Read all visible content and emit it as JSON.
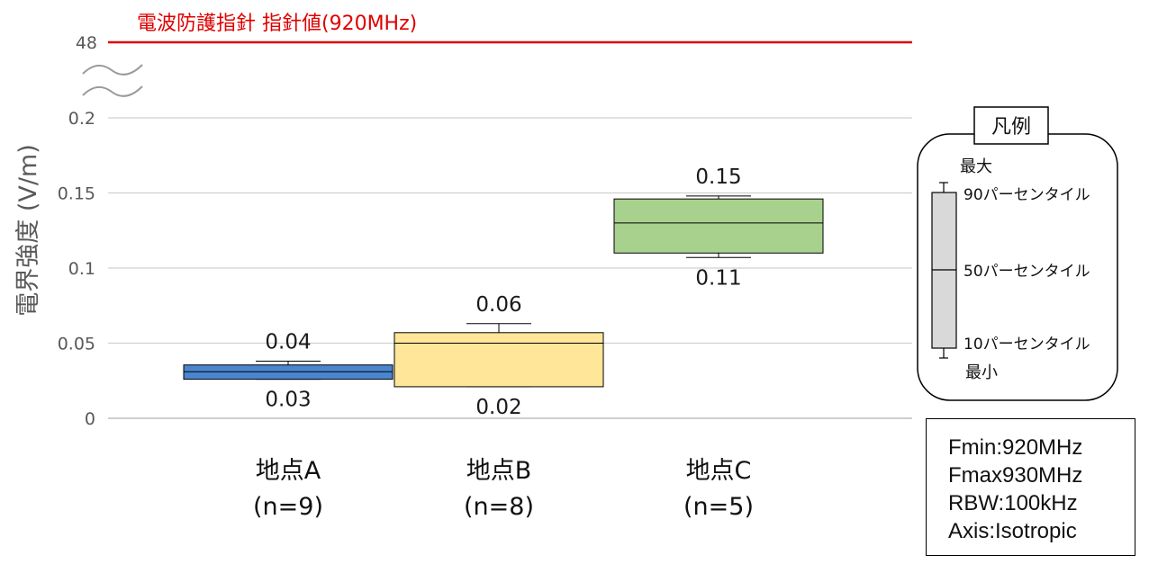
{
  "chart_data": {
    "type": "box",
    "title": "電波防護指針 指針値(920MHz)",
    "ylabel": "電界強度 (V/m)",
    "ylim": [
      0,
      0.2
    ],
    "yticks": [
      "0",
      "0.05",
      "0.1",
      "0.15",
      "0.2"
    ],
    "axis_break_tick": "48",
    "reference_value": 48,
    "reference_color": "#e00000",
    "grid": true,
    "categories": [
      {
        "name": "地点A",
        "n_label": "(n=9)",
        "min": 0.026,
        "p10": 0.026,
        "median": 0.031,
        "p90": 0.0355,
        "max": 0.038,
        "label_top": "0.04",
        "label_bottom": "0.03",
        "color": "#4a86d0"
      },
      {
        "name": "地点B",
        "n_label": "(n=8)",
        "min": 0.021,
        "p10": 0.021,
        "median": 0.05,
        "p90": 0.057,
        "max": 0.063,
        "label_top": "0.06",
        "label_bottom": "0.02",
        "color": "#ffe699"
      },
      {
        "name": "地点C",
        "n_label": "(n=5)",
        "min": 0.107,
        "p10": 0.11,
        "median": 0.13,
        "p90": 0.146,
        "max": 0.148,
        "label_top": "0.15",
        "label_bottom": "0.11",
        "color": "#a9d18e"
      }
    ]
  },
  "legend": {
    "title": "凡例",
    "max": "最大",
    "p90": "90パーセンタイル",
    "p50": "50パーセンタイル",
    "p10": "10パーセンタイル",
    "min": "最小",
    "box_color": "#d9d9d9"
  },
  "params": [
    "Fmin:920MHz",
    "Fmax930MHz",
    "RBW:100kHz",
    "Axis:Isotropic"
  ]
}
